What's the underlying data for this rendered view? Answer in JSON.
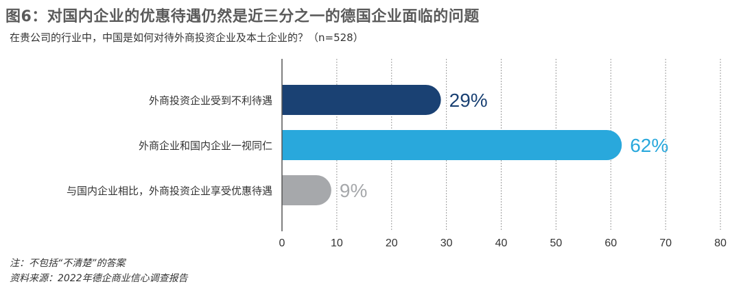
{
  "title": "图6：对国内企业的优惠待遇仍然是近三分之一的德国企业面临的问题",
  "subtitle": "在贵公司的行业中，中国是如何对待外商投资企业及本土企业的？（n=528）",
  "notes": {
    "note": "注：不包括“不清楚”的答案",
    "source": "资料来源：2022年德企商业信心调查报告"
  },
  "chart_data": {
    "type": "bar",
    "orientation": "horizontal",
    "categories": [
      "外商投资企业受到不利待遇",
      "外商企业和国内企业一视同仁",
      "与国内企业相比，外商投资企业享受优惠待遇"
    ],
    "values": [
      29,
      62,
      9
    ],
    "value_labels": [
      "29%",
      "62%",
      "9%"
    ],
    "colors": [
      "#1a4173",
      "#29a8dc",
      "#a6a8ab"
    ],
    "xlim": [
      0,
      80
    ],
    "xticks": [
      "0",
      "10",
      "20",
      "30",
      "40",
      "50",
      "60",
      "70",
      "80"
    ],
    "grid": "vertical dotted"
  }
}
